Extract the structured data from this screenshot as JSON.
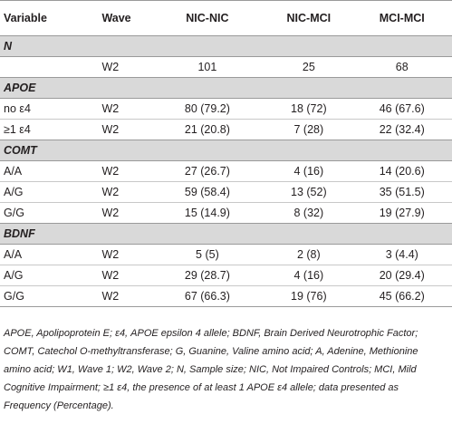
{
  "table": {
    "headers": [
      "Variable",
      "Wave",
      "NIC-NIC",
      "NIC-MCI",
      "MCI-MCI"
    ],
    "sections": [
      {
        "title": "N",
        "rows": [
          [
            "",
            "W2",
            "101",
            "25",
            "68"
          ]
        ]
      },
      {
        "title": "APOE",
        "rows": [
          [
            "no ε4",
            "W2",
            "80 (79.2)",
            "18 (72)",
            "46 (67.6)"
          ],
          [
            "≥1 ε4",
            "W2",
            "21 (20.8)",
            "7 (28)",
            "22 (32.4)"
          ]
        ]
      },
      {
        "title": "COMT",
        "rows": [
          [
            "A/A",
            "W2",
            "27 (26.7)",
            "4 (16)",
            "14 (20.6)"
          ],
          [
            "A/G",
            "W2",
            "59 (58.4)",
            "13 (52)",
            "35 (51.5)"
          ],
          [
            "G/G",
            "W2",
            "15 (14.9)",
            "8 (32)",
            "19 (27.9)"
          ]
        ]
      },
      {
        "title": "BDNF",
        "rows": [
          [
            "A/A",
            "W2",
            "5 (5)",
            "2 (8)",
            "3 (4.4)"
          ],
          [
            "A/G",
            "W2",
            "29 (28.7)",
            "4 (16)",
            "20 (29.4)"
          ],
          [
            "G/G",
            "W2",
            "67 (66.3)",
            "19 (76)",
            "45 (66.2)"
          ]
        ]
      }
    ]
  },
  "footnote": "APOE, Apolipoprotein E; ε4, APOE epsilon 4 allele; BDNF, Brain Derived Neurotrophic Factor; COMT, Catechol O-methyltransferase; G, Guanine, Valine amino acid; A, Adenine, Methionine amino acid; W1, Wave 1; W2, Wave 2; N, Sample size; NIC, Not Impaired Controls; MCI, Mild Cognitive Impairment; ≥1 ε4, the presence of at least 1 APOE ε4 allele; data presented as Frequency (Percentage)."
}
